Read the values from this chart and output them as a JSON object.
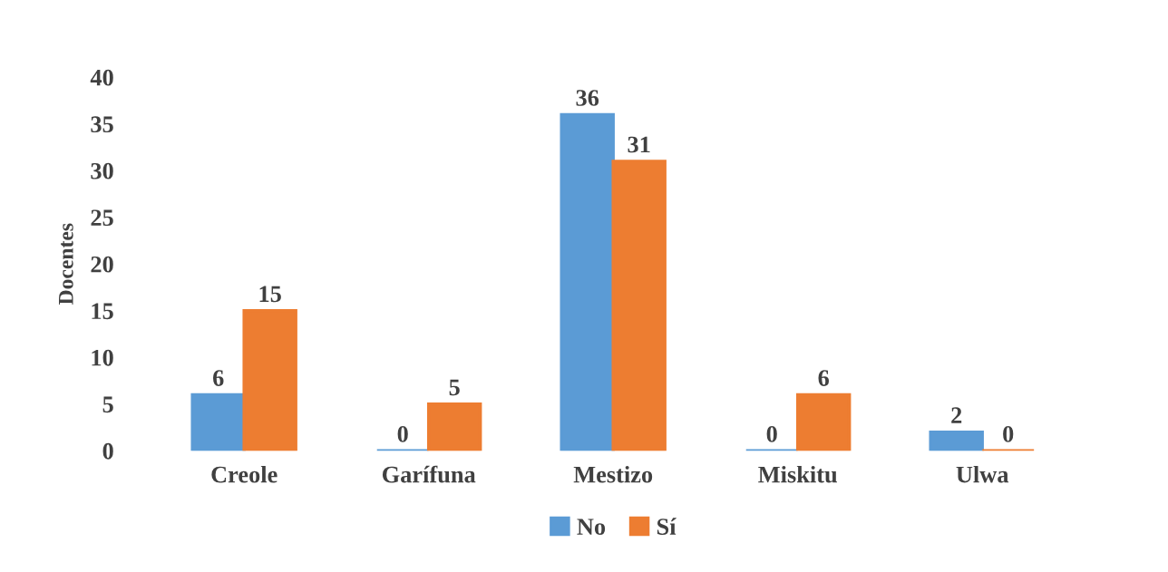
{
  "chart_data": {
    "type": "bar",
    "ylabel": "Docentes",
    "categories": [
      "Creole",
      "Garífuna",
      "Mestizo",
      "Miskitu",
      "Ulwa"
    ],
    "series": [
      {
        "name": "No",
        "color": "#5b9bd5",
        "values": [
          6,
          0,
          36,
          0,
          2
        ]
      },
      {
        "name": "Sí",
        "color": "#ed7d31",
        "values": [
          15,
          5,
          31,
          6,
          0
        ]
      }
    ],
    "ylim": [
      0,
      40
    ],
    "yticks": [
      0,
      5,
      10,
      15,
      20,
      25,
      30,
      35,
      40
    ],
    "data_labels": true,
    "grid": false,
    "legend": "bottom"
  }
}
